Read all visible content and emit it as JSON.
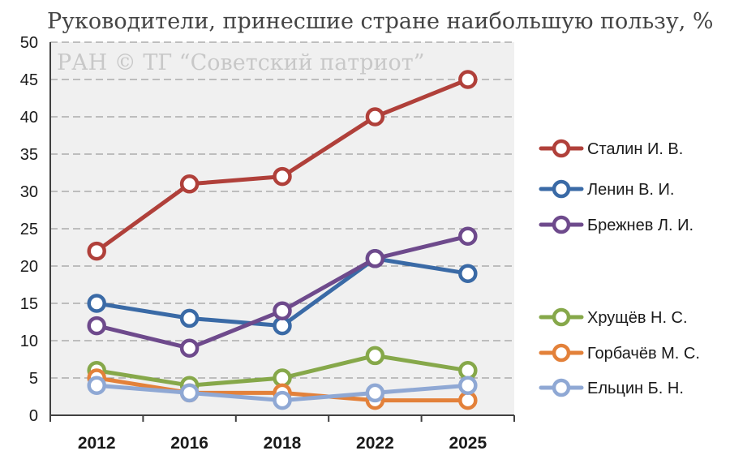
{
  "chart_data": {
    "type": "line",
    "title": "Руководители, принесшие стране наибольшую пользу, %",
    "watermark": "РАН © ТГ “Советский патриот”",
    "xlabel": "",
    "ylabel": "",
    "categories": [
      "2012",
      "2016",
      "2018",
      "2022",
      "2025"
    ],
    "ylim": [
      0,
      50
    ],
    "yticks": [
      0,
      5,
      10,
      15,
      20,
      25,
      30,
      35,
      40,
      45,
      50
    ],
    "grid": "horizontal dashed",
    "legend": "right",
    "plot_background": "#f0f0f0",
    "series": [
      {
        "name": "Сталин И. В.",
        "values": [
          22,
          31,
          32,
          40,
          45
        ],
        "color": "#b0403a"
      },
      {
        "name": "Ленин В. И.",
        "values": [
          15,
          13,
          12,
          21,
          19
        ],
        "color": "#3a6aa6"
      },
      {
        "name": "Брежнев Л. И.",
        "values": [
          12,
          9,
          14,
          21,
          24
        ],
        "color": "#6e4a8c"
      },
      {
        "name": "Хрущёв Н. С.",
        "values": [
          6,
          4,
          5,
          8,
          6
        ],
        "color": "#86a84a"
      },
      {
        "name": "Горбачёв М. С.",
        "values": [
          5,
          3,
          3,
          2,
          2
        ],
        "color": "#e3813a"
      },
      {
        "name": "Ельцин Б. Н.",
        "values": [
          4,
          3,
          2,
          3,
          4
        ],
        "color": "#8fa8d4"
      }
    ]
  }
}
